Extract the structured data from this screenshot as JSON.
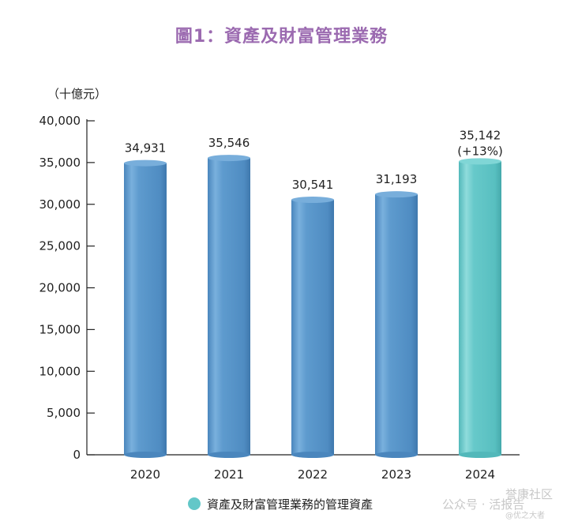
{
  "chart_data": {
    "type": "bar",
    "title": "圖1：資產及財富管理業務",
    "ylabel": "（十億元）",
    "xlabel": "",
    "categories": [
      "2020",
      "2021",
      "2022",
      "2023",
      "2024"
    ],
    "series": [
      {
        "name": "資產及財富管理業務的管理資產",
        "values": [
          34931,
          35546,
          30541,
          31193,
          35142
        ]
      }
    ],
    "data_labels": [
      "34,931",
      "35,546",
      "30,541",
      "31,193",
      "35,142"
    ],
    "growth_annotation": "(+13%)",
    "ylim": [
      0,
      40000
    ],
    "yticks": [
      0,
      5000,
      10000,
      15000,
      20000,
      25000,
      30000,
      35000,
      40000
    ],
    "ytick_labels": [
      "0",
      "5,000",
      "10,000",
      "15,000",
      "20,000",
      "25,000",
      "30,000",
      "35,000",
      "40,000"
    ],
    "grid": false,
    "legend_position": "bottom-center",
    "colors": {
      "bar": "#5b97cb",
      "highlight_bar": "#63c7c8",
      "title": "#9b6ab0"
    },
    "highlight_index": 4
  },
  "watermark": {
    "text": "公众号 · 活报告",
    "line2": "誉康社区",
    "line3": "@优之大者"
  }
}
